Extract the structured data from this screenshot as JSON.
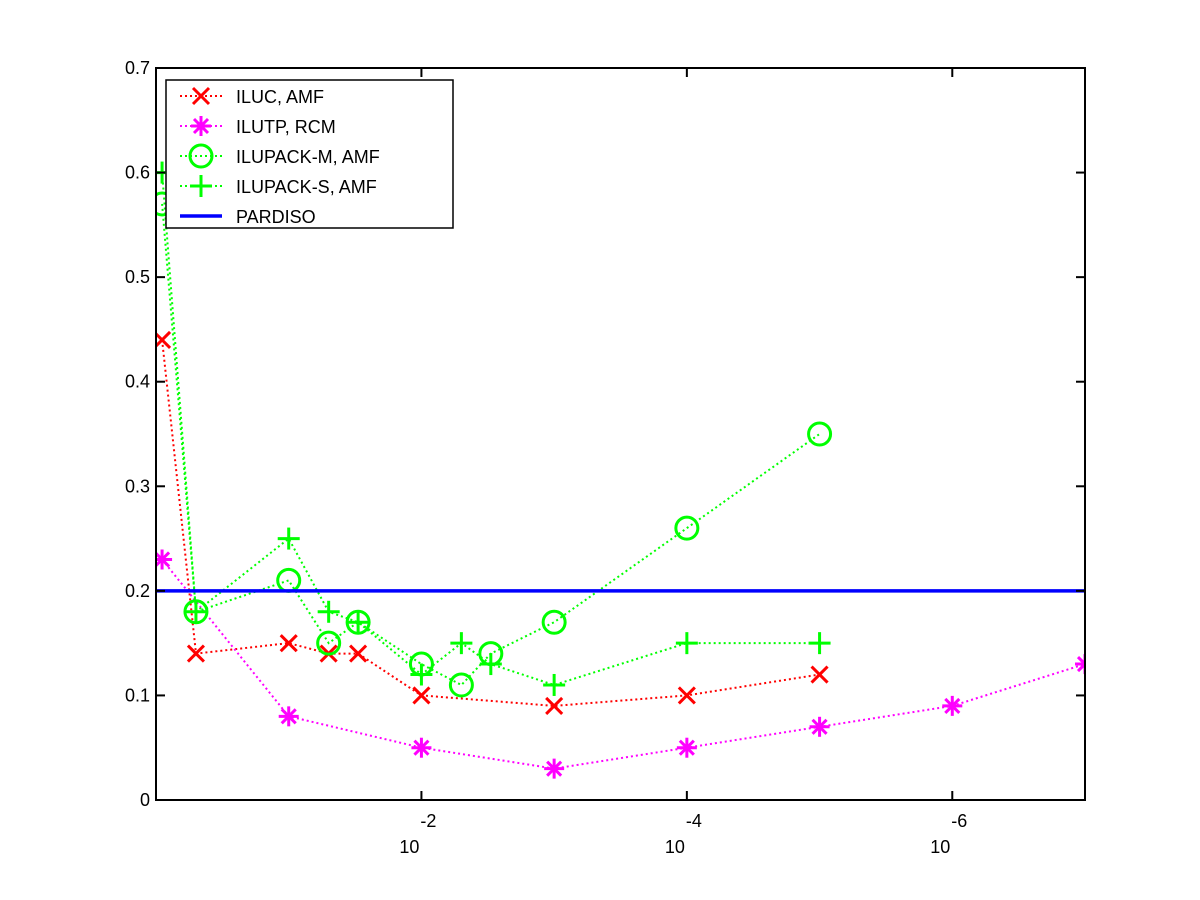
{
  "chart_data": {
    "type": "line",
    "x_scale": "log10-reversed",
    "xlim": [
      1,
      1e-07
    ],
    "ylim": [
      0,
      0.7
    ],
    "grid": false,
    "legend_position": "top-left",
    "y_ticks": [
      {
        "value": 0,
        "label": "0"
      },
      {
        "value": 0.1,
        "label": "0.1"
      },
      {
        "value": 0.2,
        "label": "0.2"
      },
      {
        "value": 0.3,
        "label": "0.3"
      },
      {
        "value": 0.4,
        "label": "0.4"
      },
      {
        "value": 0.5,
        "label": "0.5"
      },
      {
        "value": 0.6,
        "label": "0.6"
      },
      {
        "value": 0.7,
        "label": "0.7"
      }
    ],
    "x_ticks": [
      {
        "value": 0.01,
        "base": "10",
        "exponent": "-2"
      },
      {
        "value": 0.0001,
        "base": "10",
        "exponent": "-4"
      },
      {
        "value": 1e-06,
        "base": "10",
        "exponent": "-6"
      }
    ],
    "series": [
      {
        "name": "ILUC, AMF",
        "color": "#ff0000",
        "marker": "x",
        "linestyle": "dotted",
        "x": [
          0.9,
          0.5,
          0.1,
          0.05,
          0.03,
          0.01,
          0.001,
          0.0001,
          1e-05
        ],
        "y": [
          0.44,
          0.14,
          0.15,
          0.14,
          0.14,
          0.1,
          0.09,
          0.1,
          0.12
        ]
      },
      {
        "name": "ILUTP, RCM",
        "color": "#ff00ff",
        "marker": "asterisk",
        "linestyle": "dotted",
        "x": [
          0.9,
          0.1,
          0.01,
          0.001,
          0.0001,
          1e-05,
          1e-06,
          1e-07
        ],
        "y": [
          0.23,
          0.08,
          0.05,
          0.03,
          0.05,
          0.07,
          0.09,
          0.13
        ]
      },
      {
        "name": "ILUPACK-M, AMF",
        "color": "#00ff00",
        "marker": "circle",
        "linestyle": "dotted",
        "x": [
          0.9,
          0.5,
          0.1,
          0.05,
          0.03,
          0.01,
          0.005,
          0.003,
          0.001,
          0.0001,
          1e-05
        ],
        "y": [
          0.57,
          0.18,
          0.21,
          0.15,
          0.17,
          0.13,
          0.11,
          0.14,
          0.17,
          0.26,
          0.35
        ]
      },
      {
        "name": "ILUPACK-S, AMF",
        "color": "#00ff00",
        "marker": "plus",
        "linestyle": "dotted",
        "x": [
          0.9,
          0.5,
          0.1,
          0.05,
          0.03,
          0.01,
          0.005,
          0.003,
          0.001,
          0.0001,
          1e-05
        ],
        "y": [
          0.6,
          0.18,
          0.25,
          0.18,
          0.17,
          0.12,
          0.15,
          0.13,
          0.11,
          0.15,
          0.15
        ]
      },
      {
        "name": "PARDISO",
        "color": "#0000ff",
        "marker": "none",
        "linestyle": "solid",
        "x": [
          1,
          1e-07
        ],
        "y": [
          0.2,
          0.2
        ]
      }
    ]
  }
}
